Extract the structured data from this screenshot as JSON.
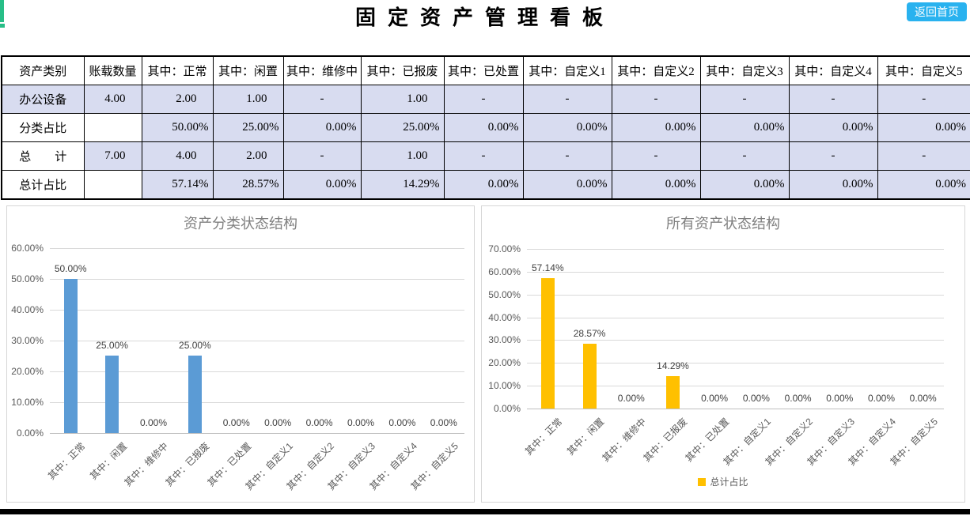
{
  "page": {
    "title": "固定资产管理看板",
    "back_button": "返回首页"
  },
  "colors": {
    "button": "#29B2EF",
    "cell_blue": "#D8DCF0",
    "green_marker": "#27BE87",
    "bar_blue": "#5B9BD5",
    "bar_yellow": "#FFC000",
    "grid": "#D9D9D9",
    "axis_text": "#595959",
    "title_gray": "#7F7F7F"
  },
  "table": {
    "columns": [
      "资产类别",
      "账载数量",
      "其中：正常",
      "其中：闲置",
      "其中：维修中",
      "其中：已报废",
      "其中：已处置",
      "其中：自定义1",
      "其中：自定义2",
      "其中：自定义3",
      "其中：自定义4",
      "其中：自定义5"
    ],
    "rows": [
      {
        "label": "办公设备",
        "shaded_label": true,
        "values": [
          "4.00",
          "2.00",
          "1.00",
          "-",
          "1.00",
          "-",
          "-",
          "-",
          "-",
          "-",
          "-"
        ]
      },
      {
        "label": "分类占比",
        "shaded_label": false,
        "values": [
          "",
          "50.00%",
          "25.00%",
          "0.00%",
          "25.00%",
          "0.00%",
          "0.00%",
          "0.00%",
          "0.00%",
          "0.00%",
          "0.00%"
        ]
      },
      {
        "label": "总　　计",
        "shaded_label": false,
        "values": [
          "7.00",
          "4.00",
          "2.00",
          "-",
          "1.00",
          "-",
          "-",
          "-",
          "-",
          "-",
          "-"
        ]
      },
      {
        "label": "总计占比",
        "shaded_label": false,
        "values": [
          "",
          "57.14%",
          "28.57%",
          "0.00%",
          "14.29%",
          "0.00%",
          "0.00%",
          "0.00%",
          "0.00%",
          "0.00%",
          "0.00%"
        ]
      }
    ]
  },
  "chart_data": [
    {
      "type": "bar",
      "title": "资产分类状态结构",
      "categories": [
        "其中：正常",
        "其中：闲置",
        "其中：维修中",
        "其中：已报废",
        "其中：已处置",
        "其中：自定义1",
        "其中：自定义2",
        "其中：自定义3",
        "其中：自定义4",
        "其中：自定义5"
      ],
      "values": [
        50.0,
        25.0,
        0.0,
        25.0,
        0.0,
        0.0,
        0.0,
        0.0,
        0.0,
        0.0
      ],
      "labels": [
        "50.00%",
        "25.00%",
        "0.00%",
        "25.00%",
        "0.00%",
        "0.00%",
        "0.00%",
        "0.00%",
        "0.00%",
        "0.00%"
      ],
      "xlabel": "",
      "ylabel": "",
      "ylim": [
        0,
        60
      ],
      "yticks": [
        "0.00%",
        "10.00%",
        "20.00%",
        "30.00%",
        "40.00%",
        "50.00%",
        "60.00%"
      ],
      "grid": true,
      "bar_color": "#5B9BD5",
      "legend": null
    },
    {
      "type": "bar",
      "title": "所有资产状态结构",
      "categories": [
        "其中：正常",
        "其中：闲置",
        "其中：维修中",
        "其中：已报废",
        "其中：已处置",
        "其中：自定义1",
        "其中：自定义2",
        "其中：自定义3",
        "其中：自定义4",
        "其中：自定义5"
      ],
      "values": [
        57.14,
        28.57,
        0.0,
        14.29,
        0.0,
        0.0,
        0.0,
        0.0,
        0.0,
        0.0
      ],
      "labels": [
        "57.14%",
        "28.57%",
        "0.00%",
        "14.29%",
        "0.00%",
        "0.00%",
        "0.00%",
        "0.00%",
        "0.00%",
        "0.00%"
      ],
      "xlabel": "",
      "ylabel": "",
      "ylim": [
        0,
        70
      ],
      "yticks": [
        "0.00%",
        "10.00%",
        "20.00%",
        "30.00%",
        "40.00%",
        "50.00%",
        "60.00%",
        "70.00%"
      ],
      "grid": true,
      "bar_color": "#FFC000",
      "legend": "总计占比",
      "legend_position": "bottom"
    }
  ]
}
